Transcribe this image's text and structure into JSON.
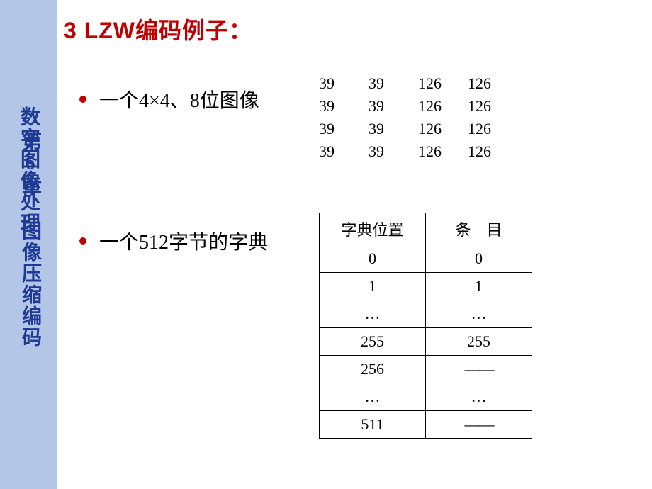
{
  "heading": "3 LZW编码例子：",
  "sidebar": {
    "text1": "数字图像处理",
    "text2": "第6章 图像压缩编码",
    "color": "#1f3a93",
    "bg": "#b3c6e7"
  },
  "bullets": {
    "b1": "一个4×4、8位图像",
    "b2": "一个512字节的字典"
  },
  "matrix": {
    "rows": [
      [
        "39",
        "39",
        "126",
        "126"
      ],
      [
        "39",
        "39",
        "126",
        "126"
      ],
      [
        "39",
        "39",
        "126",
        "126"
      ],
      [
        "39",
        "39",
        "126",
        "126"
      ]
    ]
  },
  "dict": {
    "headers": {
      "pos": "字典位置",
      "entry": "条　目"
    },
    "rows": [
      {
        "pos": "0",
        "entry": "0"
      },
      {
        "pos": "1",
        "entry": "1"
      },
      {
        "pos": "…",
        "entry": "…"
      },
      {
        "pos": "255",
        "entry": "255"
      },
      {
        "pos": "256",
        "entry": "——"
      },
      {
        "pos": "…",
        "entry": "…"
      },
      {
        "pos": "511",
        "entry": "——"
      }
    ]
  },
  "colors": {
    "heading": "#c00000",
    "bullet_dot": "#c00000",
    "text": "#000000",
    "table_border": "#000000"
  }
}
